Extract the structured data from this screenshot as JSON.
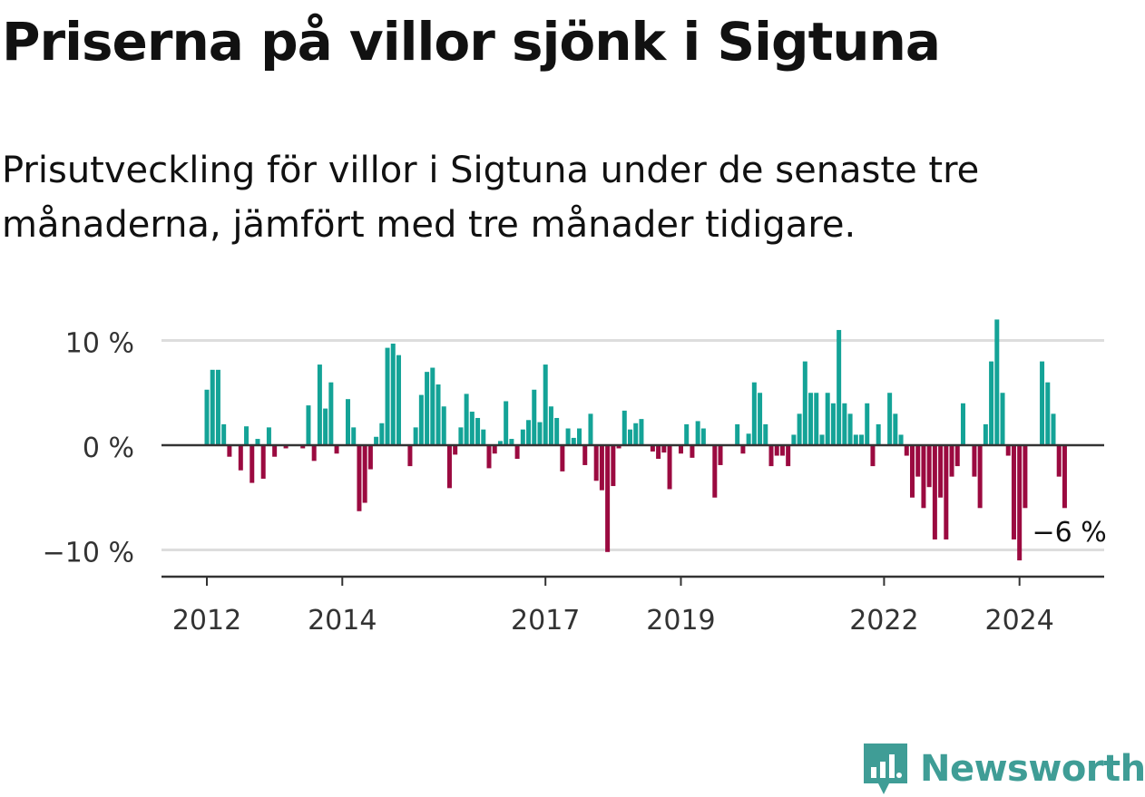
{
  "title": "Priserna på villor sjönk i Sigtuna",
  "subtitle": "Prisutveckling för villor i Sigtuna under de senaste tre månaderna, jämfört med tre månader tidigare.",
  "brand": "Newsworthy",
  "colors": {
    "positive": "#14a397",
    "negative": "#9b0a40",
    "grid": "#dddddd",
    "axis": "#333333",
    "brand": "#3f9d96"
  },
  "chart_data": {
    "type": "bar",
    "title": "Priserna på villor sjönk i Sigtuna",
    "xlabel": "",
    "ylabel": "",
    "ylim": [
      -12.5,
      12
    ],
    "yticks": [
      {
        "value": 10,
        "label": "10 %"
      },
      {
        "value": 0,
        "label": "0 %"
      },
      {
        "value": -10,
        "label": "−10 %"
      }
    ],
    "xticks": [
      {
        "index": 0,
        "label": "2012"
      },
      {
        "index": 24,
        "label": "2014"
      },
      {
        "index": 60,
        "label": "2017"
      },
      {
        "index": 84,
        "label": "2019"
      },
      {
        "index": 120,
        "label": "2022"
      },
      {
        "index": 144,
        "label": "2024"
      }
    ],
    "start": "2012-01",
    "frequency": "monthly",
    "values": [
      5.3,
      7.2,
      7.2,
      2.0,
      -1.1,
      0,
      -2.4,
      1.8,
      -3.6,
      0.6,
      -3.2,
      1.7,
      -1.1,
      0,
      -0.3,
      0,
      0,
      -0.3,
      3.8,
      -1.5,
      7.7,
      3.5,
      6.0,
      -0.8,
      0,
      4.4,
      1.7,
      -6.3,
      -5.5,
      -2.3,
      0.8,
      2.1,
      9.3,
      9.7,
      8.6,
      0,
      -2.0,
      1.7,
      4.8,
      7.0,
      7.4,
      5.8,
      3.7,
      -4.1,
      -0.9,
      1.7,
      4.9,
      3.2,
      2.6,
      1.5,
      -2.2,
      -0.8,
      0.4,
      4.2,
      0.6,
      -1.3,
      1.5,
      2.4,
      5.3,
      2.2,
      7.7,
      3.7,
      2.6,
      -2.5,
      1.6,
      0.7,
      1.6,
      -1.9,
      3.0,
      -3.4,
      -4.3,
      -10.2,
      -3.9,
      -0.3,
      3.3,
      1.5,
      2.1,
      2.5,
      0,
      -0.6,
      -1.3,
      -0.7,
      -4.2,
      0,
      -0.8,
      2.0,
      -1.2,
      2.3,
      1.6,
      0,
      -5.0,
      -1.9,
      0,
      0,
      2.0,
      -0.8,
      1.1,
      6.0,
      5.0,
      2.0,
      -2.0,
      -1.0,
      -1.0,
      -2.0,
      1.0,
      3.0,
      8.0,
      5.0,
      5.0,
      1.0,
      5.0,
      4.0,
      11.0,
      4.0,
      3.0,
      1.0,
      1.0,
      4.0,
      -2.0,
      2.0,
      0,
      5.0,
      3.0,
      1.0,
      -1.0,
      -5.0,
      -3.0,
      -6.0,
      -4.0,
      -9.0,
      -5.0,
      -9.0,
      -3.0,
      -2.0,
      4.0,
      0,
      -3.0,
      -6.0,
      2.0,
      8.0,
      12.0,
      5.0,
      -1.0,
      -9.0,
      -11.0,
      -6.0,
      0,
      0,
      8.0,
      6.0,
      3.0,
      -3.0,
      -6.0
    ],
    "last_value_label": "−6 %"
  }
}
